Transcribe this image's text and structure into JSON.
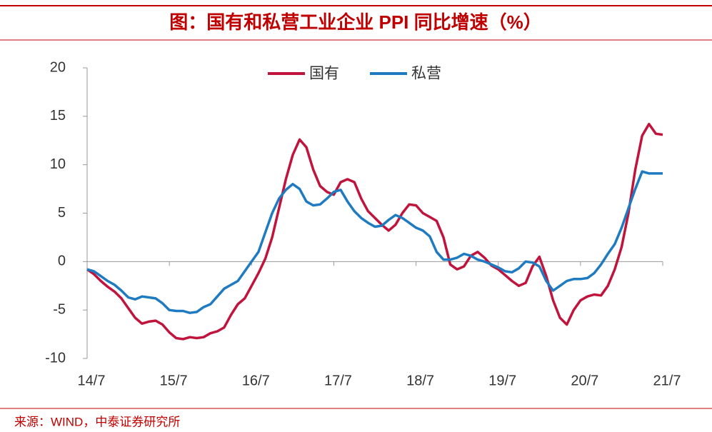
{
  "chart_data": {
    "type": "line",
    "title": "图：国有和私营工业企业 PPI 同比增速（%）",
    "source": "来源：WIND，中泰证券研究所",
    "categories": [
      "14/7",
      null,
      null,
      null,
      null,
      null,
      null,
      null,
      null,
      null,
      null,
      null,
      "15/7",
      null,
      null,
      null,
      null,
      null,
      null,
      null,
      null,
      null,
      null,
      null,
      "16/7",
      null,
      null,
      null,
      null,
      null,
      null,
      null,
      null,
      null,
      null,
      null,
      "17/7",
      null,
      null,
      null,
      null,
      null,
      null,
      null,
      null,
      null,
      null,
      null,
      "18/7",
      null,
      null,
      null,
      null,
      null,
      null,
      null,
      null,
      null,
      null,
      null,
      "19/7",
      null,
      null,
      null,
      null,
      null,
      null,
      null,
      null,
      null,
      null,
      null,
      "20/7",
      null,
      null,
      null,
      null,
      null,
      null,
      null,
      null,
      null,
      null,
      null,
      "21/7"
    ],
    "series": [
      {
        "name": "国有",
        "color": "#c0143c",
        "values": [
          -0.8,
          -1.3,
          -2,
          -2.6,
          -3.1,
          -3.8,
          -4.8,
          -5.8,
          -6.4,
          -6.2,
          -6.1,
          -6.5,
          -7.3,
          -7.9,
          -8.0,
          -7.8,
          -7.9,
          -7.8,
          -7.4,
          -7.2,
          -6.8,
          -5.5,
          -4.4,
          -3.8,
          -2.5,
          -1.2,
          0.3,
          2.5,
          5.5,
          8.5,
          11,
          12.6,
          11.8,
          9.5,
          7.8,
          7.2,
          6.9,
          8.2,
          8.5,
          8.2,
          6.5,
          5.2,
          4.5,
          3.8,
          3.2,
          3.8,
          5.0,
          5.9,
          5.8,
          5.0,
          4.6,
          4.2,
          2.5,
          -0.3,
          -0.8,
          -0.5,
          0.6,
          1.0,
          0.4,
          -0.4,
          -0.8,
          -1.4,
          -2.0,
          -2.5,
          -2.2,
          -0.5,
          0.5,
          -1.5,
          -4.0,
          -5.8,
          -6.5,
          -5.0,
          -4.0,
          -3.6,
          -3.4,
          -3.5,
          -2.5,
          -0.8,
          1.5,
          5,
          9.5,
          13,
          14.2,
          13.2,
          13.1
        ]
      },
      {
        "name": "私营",
        "color": "#1f7bc1",
        "values": [
          -0.8,
          -1.0,
          -1.5,
          -2.0,
          -2.4,
          -3.0,
          -3.7,
          -3.9,
          -3.6,
          -3.7,
          -3.8,
          -4.3,
          -5.0,
          -5.1,
          -5.1,
          -5.3,
          -5.2,
          -4.7,
          -4.4,
          -3.6,
          -2.8,
          -2.4,
          -2.0,
          -1.0,
          0,
          1.0,
          3.0,
          5.0,
          6.5,
          7.4,
          8.0,
          7.5,
          6.2,
          5.8,
          5.9,
          6.5,
          7.2,
          7.4,
          6.2,
          5.2,
          4.5,
          4.0,
          3.6,
          3.7,
          4.3,
          4.8,
          4.5,
          4.0,
          3.5,
          3.2,
          2.6,
          1.0,
          0.2,
          0.2,
          0.4,
          0.8,
          0.6,
          0.2,
          0,
          -0.3,
          -0.6,
          -1.0,
          -1.1,
          -0.7,
          0,
          -0.1,
          -0.5,
          -2.0,
          -3.0,
          -2.5,
          -2.0,
          -1.8,
          -1.8,
          -1.7,
          -1.2,
          -0.3,
          0.8,
          1.8,
          3.5,
          5.5,
          7.5,
          9.3,
          9.1,
          9.1,
          9.1
        ]
      }
    ],
    "ylim": [
      -10,
      20
    ],
    "yticks": [
      -10,
      -5,
      0,
      5,
      10,
      15,
      20
    ],
    "legend": "top"
  }
}
